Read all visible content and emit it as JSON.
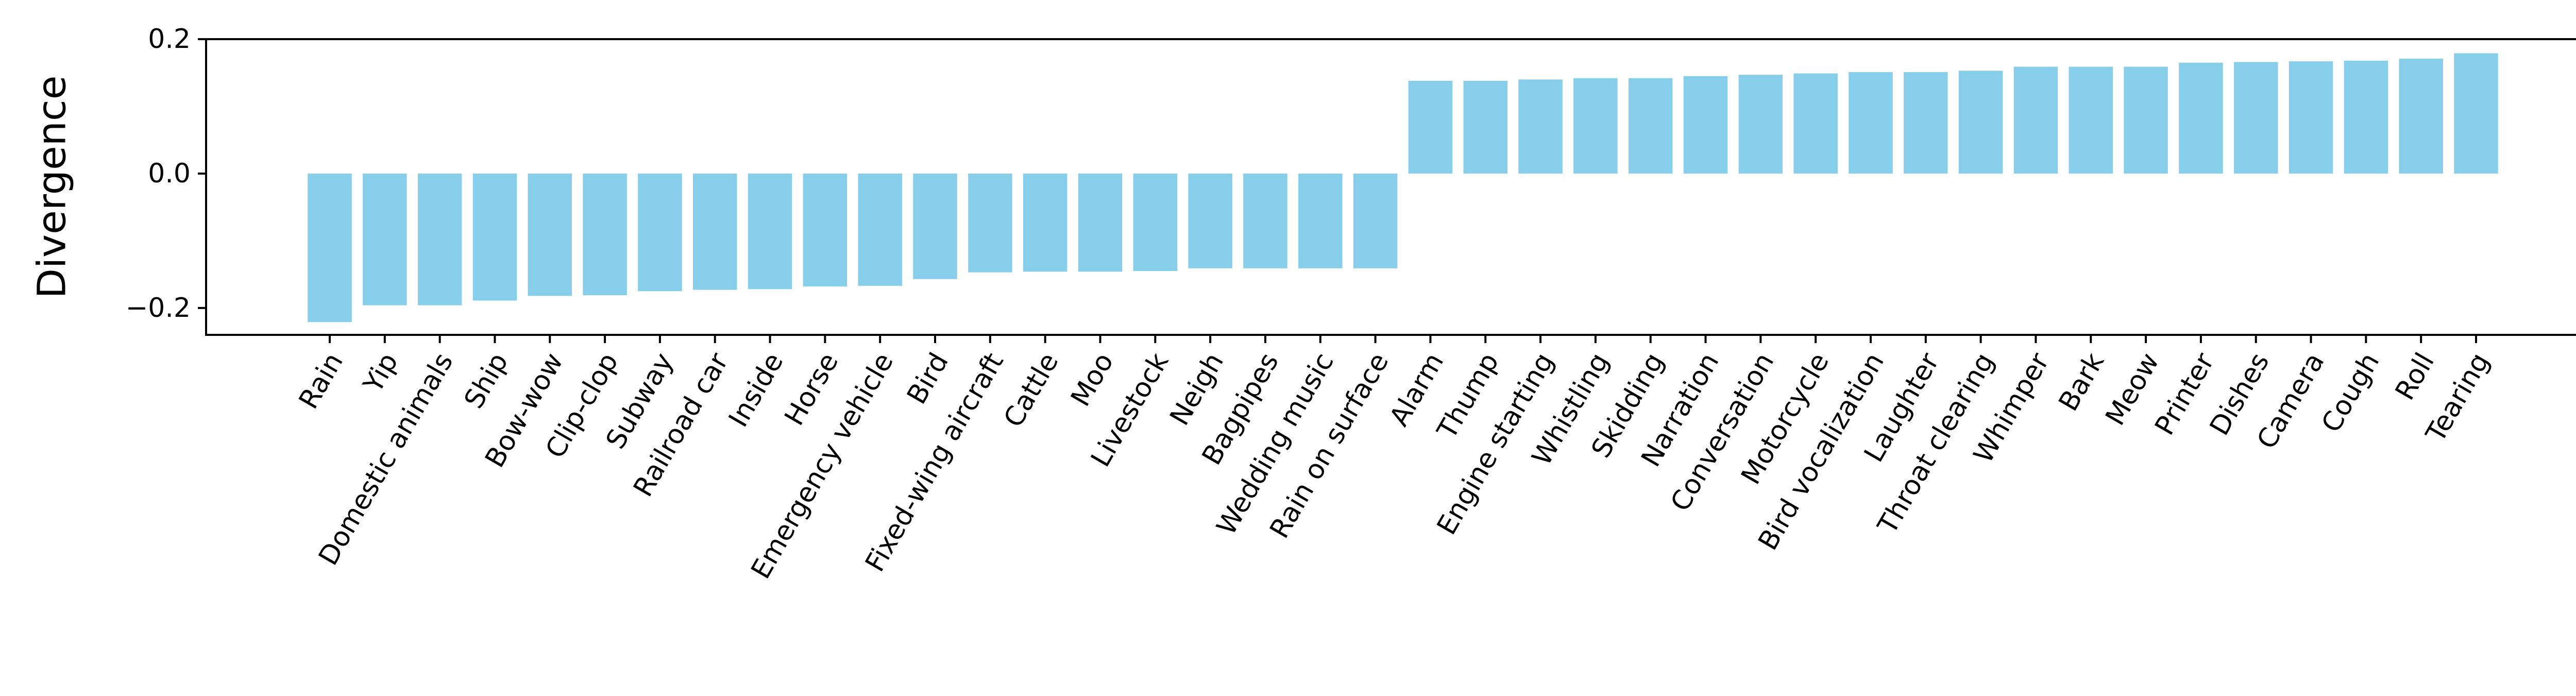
{
  "chart_data": {
    "type": "bar",
    "title": "",
    "xlabel": "",
    "ylabel": "Divergence",
    "ylim": [
      -0.24,
      0.2
    ],
    "yticks": [
      -0.2,
      0.0,
      0.2
    ],
    "ytick_labels": [
      "−0.2",
      "0.0",
      "0.2"
    ],
    "grid": false,
    "bar_color": "#87CEEB",
    "categories": [
      "Rain",
      "Yip",
      "Domestic animals",
      "Ship",
      "Bow-wow",
      "Clip-clop",
      "Subway",
      "Railroad car",
      "Inside",
      "Horse",
      "Emergency vehicle",
      "Bird",
      "Fixed-wing aircraft",
      "Cattle",
      "Moo",
      "Livestock",
      "Neigh",
      "Bagpipes",
      "Wedding music",
      "Rain on surface",
      "Alarm",
      "Thump",
      "Engine starting",
      "Whistling",
      "Skidding",
      "Narration",
      "Conversation",
      "Motorcycle",
      "Bird vocalization",
      "Laughter",
      "Throat clearing",
      "Whimper",
      "Bark",
      "Meow",
      "Printer",
      "Dishes",
      "Camera",
      "Cough",
      "Roll",
      "Tearing"
    ],
    "values": [
      -0.221,
      -0.196,
      -0.196,
      -0.189,
      -0.182,
      -0.181,
      -0.175,
      -0.173,
      -0.172,
      -0.168,
      -0.167,
      -0.157,
      -0.147,
      -0.146,
      -0.146,
      -0.145,
      -0.141,
      -0.141,
      -0.141,
      -0.141,
      0.138,
      0.138,
      0.14,
      0.142,
      0.142,
      0.145,
      0.147,
      0.149,
      0.151,
      0.151,
      0.153,
      0.159,
      0.159,
      0.159,
      0.165,
      0.166,
      0.167,
      0.168,
      0.171,
      0.179
    ]
  }
}
